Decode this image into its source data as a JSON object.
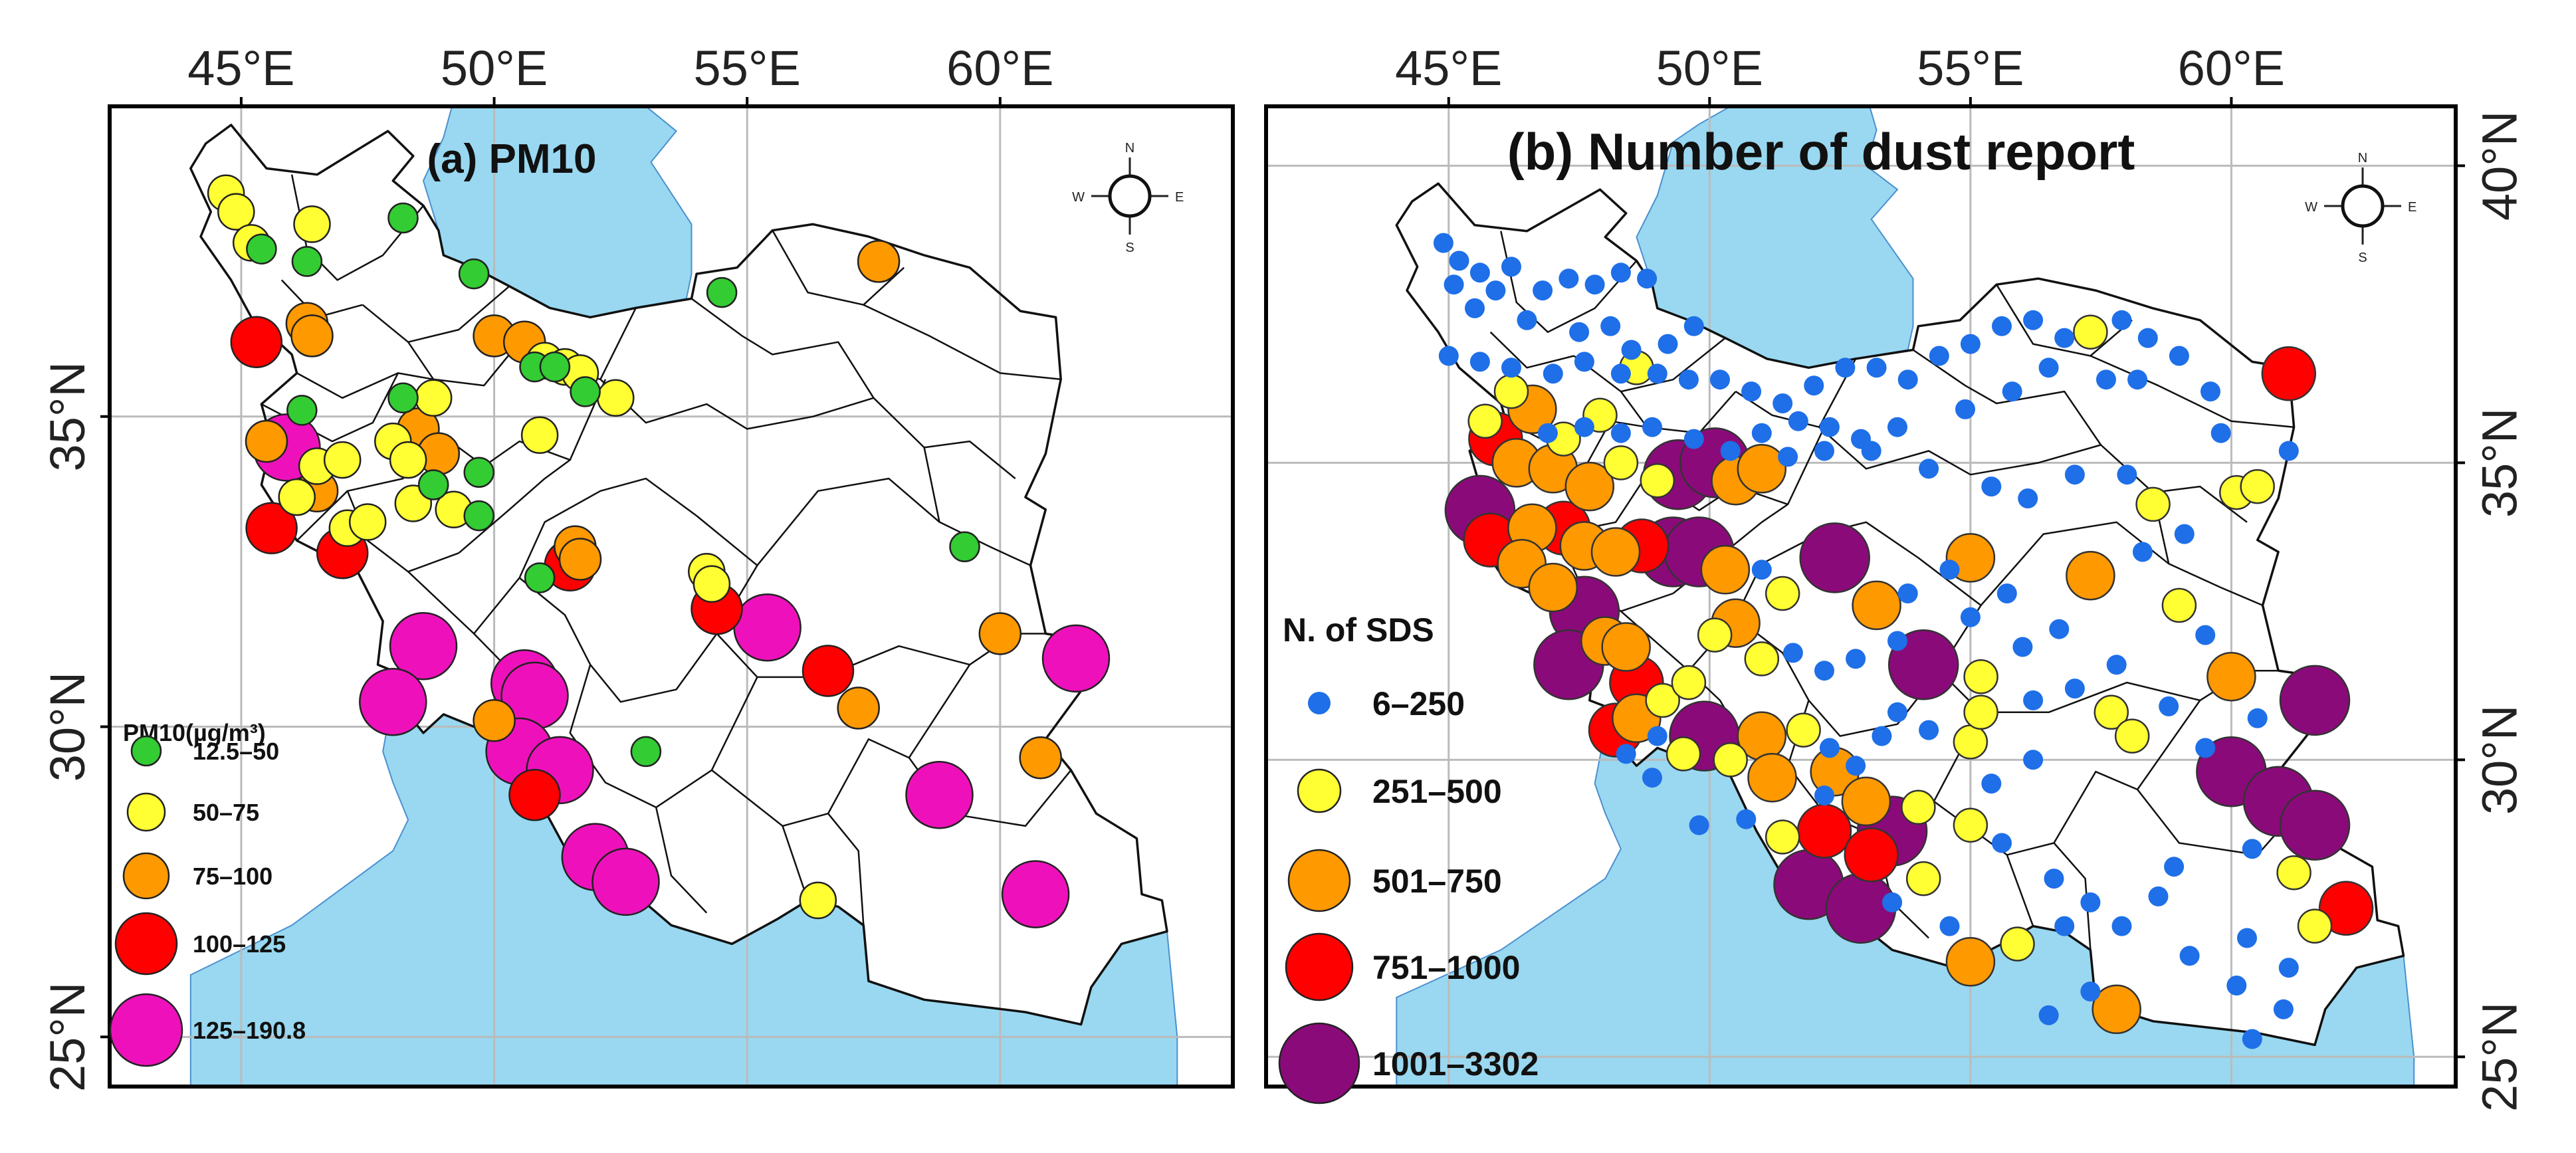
{
  "figure": {
    "panels": [
      {
        "id": "a",
        "title": "(a) PM10",
        "lon_ticks": [
          "45°E",
          "50°E",
          "55°E",
          "60°E"
        ],
        "lat_ticks": [
          "25°N",
          "30°N",
          "35°N"
        ],
        "legend_title": "PM10(µg/m³)",
        "legend": [
          {
            "label": "12.5–50",
            "color": "#33cc33"
          },
          {
            "label": "50–75",
            "color": "#ffff33"
          },
          {
            "label": "75–100",
            "color": "#ff9900"
          },
          {
            "label": "100–125",
            "color": "#ff0000"
          },
          {
            "label": "125–190.8",
            "color": "#ee11bb"
          }
        ],
        "compass": {
          "N": "N",
          "E": "E",
          "S": "S",
          "W": "W"
        }
      },
      {
        "id": "b",
        "title": "(b) Number of dust report",
        "lon_ticks": [
          "45°E",
          "50°E",
          "55°E",
          "60°E"
        ],
        "lat_ticks": [
          "25°N",
          "30°N",
          "35°N",
          "40°N"
        ],
        "legend_title": "N. of SDS",
        "legend": [
          {
            "label": "6–250",
            "color": "#1e6fe8"
          },
          {
            "label": "251–500",
            "color": "#ffff33"
          },
          {
            "label": "501–750",
            "color": "#ff9900"
          },
          {
            "label": "751–1000",
            "color": "#ff0000"
          },
          {
            "label": "1001–3302",
            "color": "#8b0a7a"
          }
        ],
        "compass": {
          "N": "N",
          "E": "E",
          "S": "S",
          "W": "W"
        }
      }
    ]
  },
  "colors": {
    "water": "#99d8f0",
    "border": "#111111",
    "grid": "#bbbbbb",
    "frame": "#000000"
  },
  "stations_a": [
    [
      44.7,
      38.6,
      1
    ],
    [
      44.9,
      38.3,
      1
    ],
    [
      45.2,
      37.8,
      1
    ],
    [
      46.4,
      38.1,
      1
    ],
    [
      45.4,
      37.7,
      0
    ],
    [
      46.3,
      37.5,
      0
    ],
    [
      48.2,
      38.2,
      0
    ],
    [
      49.6,
      37.3,
      0
    ],
    [
      54.5,
      37.0,
      0
    ],
    [
      57.6,
      37.5,
      2
    ],
    [
      45.3,
      36.2,
      3
    ],
    [
      46.3,
      36.5,
      2
    ],
    [
      46.4,
      36.3,
      2
    ],
    [
      50.0,
      36.3,
      2
    ],
    [
      50.6,
      36.2,
      2
    ],
    [
      51.0,
      35.9,
      1
    ],
    [
      51.4,
      35.8,
      1
    ],
    [
      51.7,
      35.7,
      1
    ],
    [
      51.8,
      35.4,
      0
    ],
    [
      50.8,
      35.8,
      0
    ],
    [
      51.2,
      35.8,
      0
    ],
    [
      52.4,
      35.3,
      1
    ],
    [
      46.2,
      35.1,
      0
    ],
    [
      48.2,
      35.3,
      0
    ],
    [
      48.8,
      35.3,
      1
    ],
    [
      50.9,
      34.7,
      1
    ],
    [
      45.5,
      34.6,
      2
    ],
    [
      45.9,
      34.5,
      4
    ],
    [
      46.5,
      34.2,
      1
    ],
    [
      47.0,
      34.3,
      1
    ],
    [
      48.0,
      34.6,
      1
    ],
    [
      48.3,
      34.3,
      1
    ],
    [
      48.5,
      34.8,
      2
    ],
    [
      48.9,
      34.4,
      2
    ],
    [
      49.7,
      34.1,
      0
    ],
    [
      46.5,
      33.8,
      2
    ],
    [
      46.1,
      33.7,
      1
    ],
    [
      47.1,
      33.2,
      1
    ],
    [
      47.5,
      33.3,
      1
    ],
    [
      48.4,
      33.6,
      1
    ],
    [
      49.2,
      33.5,
      1
    ],
    [
      49.7,
      33.4,
      0
    ],
    [
      48.8,
      33.9,
      0
    ],
    [
      45.6,
      33.2,
      3
    ],
    [
      47.0,
      32.8,
      3
    ],
    [
      50.9,
      32.4,
      0
    ],
    [
      51.6,
      32.9,
      2
    ],
    [
      51.7,
      32.7,
      2
    ],
    [
      51.5,
      32.6,
      3
    ],
    [
      54.2,
      32.5,
      1
    ],
    [
      54.3,
      32.3,
      1
    ],
    [
      54.4,
      31.9,
      3
    ],
    [
      55.4,
      31.6,
      4
    ],
    [
      59.3,
      32.9,
      0
    ],
    [
      48.6,
      31.3,
      4
    ],
    [
      48.0,
      30.4,
      4
    ],
    [
      50.6,
      30.7,
      4
    ],
    [
      50.8,
      30.5,
      4
    ],
    [
      50.0,
      30.1,
      2
    ],
    [
      50.5,
      29.6,
      4
    ],
    [
      51.3,
      29.3,
      4
    ],
    [
      50.8,
      28.9,
      3
    ],
    [
      53.0,
      29.6,
      0
    ],
    [
      56.6,
      30.9,
      3
    ],
    [
      57.2,
      30.3,
      2
    ],
    [
      60.0,
      31.5,
      2
    ],
    [
      61.5,
      31.1,
      4
    ],
    [
      58.8,
      28.9,
      4
    ],
    [
      60.8,
      29.5,
      2
    ],
    [
      60.7,
      27.3,
      4
    ],
    [
      52.0,
      27.9,
      4
    ],
    [
      52.6,
      27.5,
      4
    ],
    [
      56.4,
      27.2,
      1
    ]
  ],
  "stations_b": [
    [
      44.9,
      38.7,
      0
    ],
    [
      45.2,
      38.4,
      0
    ],
    [
      45.6,
      38.2,
      0
    ],
    [
      45.1,
      38.0,
      0
    ],
    [
      45.5,
      37.6,
      0
    ],
    [
      45.9,
      37.9,
      0
    ],
    [
      46.2,
      38.3,
      0
    ],
    [
      46.5,
      37.4,
      0
    ],
    [
      46.8,
      37.9,
      0
    ],
    [
      47.3,
      38.1,
      0
    ],
    [
      47.8,
      38.0,
      0
    ],
    [
      48.3,
      38.2,
      0
    ],
    [
      48.8,
      38.1,
      0
    ],
    [
      47.5,
      37.2,
      0
    ],
    [
      48.1,
      37.3,
      0
    ],
    [
      48.5,
      36.9,
      0
    ],
    [
      49.2,
      37.0,
      0
    ],
    [
      49.7,
      37.3,
      0
    ],
    [
      45.0,
      36.8,
      0
    ],
    [
      45.6,
      36.7,
      0
    ],
    [
      46.2,
      36.6,
      0
    ],
    [
      47.0,
      36.5,
      0
    ],
    [
      47.6,
      36.7,
      0
    ],
    [
      48.3,
      36.5,
      0
    ],
    [
      49.0,
      36.5,
      0
    ],
    [
      49.6,
      36.4,
      0
    ],
    [
      50.2,
      36.4,
      0
    ],
    [
      50.8,
      36.2,
      0
    ],
    [
      51.4,
      36.0,
      0
    ],
    [
      52.0,
      36.3,
      0
    ],
    [
      52.6,
      36.6,
      0
    ],
    [
      53.2,
      36.6,
      0
    ],
    [
      53.8,
      36.4,
      0
    ],
    [
      54.4,
      36.8,
      0
    ],
    [
      55.0,
      37.0,
      0
    ],
    [
      55.6,
      37.3,
      0
    ],
    [
      56.2,
      37.4,
      0
    ],
    [
      56.8,
      37.1,
      0
    ],
    [
      57.3,
      37.2,
      1
    ],
    [
      57.9,
      37.4,
      0
    ],
    [
      58.4,
      37.1,
      0
    ],
    [
      59.0,
      36.8,
      0
    ],
    [
      59.6,
      36.2,
      0
    ],
    [
      58.2,
      36.4,
      0
    ],
    [
      57.6,
      36.4,
      0
    ],
    [
      56.5,
      36.6,
      0
    ],
    [
      55.8,
      36.2,
      0
    ],
    [
      54.9,
      35.9,
      0
    ],
    [
      53.6,
      35.6,
      0
    ],
    [
      52.9,
      35.4,
      0
    ],
    [
      52.2,
      35.2,
      0
    ],
    [
      51.7,
      35.7,
      0
    ],
    [
      51.0,
      35.5,
      0
    ],
    [
      50.4,
      35.2,
      0
    ],
    [
      49.7,
      35.4,
      0
    ],
    [
      48.9,
      35.6,
      0
    ],
    [
      48.3,
      35.5,
      0
    ],
    [
      47.6,
      35.6,
      0
    ],
    [
      46.9,
      35.5,
      0
    ],
    [
      46.2,
      36.2,
      1
    ],
    [
      45.7,
      35.7,
      1
    ],
    [
      46.6,
      35.9,
      2
    ],
    [
      47.2,
      35.4,
      1
    ],
    [
      47.9,
      35.8,
      1
    ],
    [
      48.6,
      36.6,
      1
    ],
    [
      45.9,
      35.4,
      3
    ],
    [
      46.3,
      35.0,
      2
    ],
    [
      47.0,
      34.9,
      2
    ],
    [
      47.7,
      34.6,
      2
    ],
    [
      48.3,
      35.0,
      1
    ],
    [
      49.0,
      34.7,
      1
    ],
    [
      49.4,
      34.8,
      4
    ],
    [
      50.1,
      35.0,
      4
    ],
    [
      50.5,
      34.7,
      2
    ],
    [
      51.0,
      34.9,
      2
    ],
    [
      51.5,
      35.1,
      0
    ],
    [
      52.3,
      35.6,
      0
    ],
    [
      53.1,
      35.2,
      0
    ],
    [
      54.2,
      34.9,
      0
    ],
    [
      55.4,
      34.6,
      0
    ],
    [
      56.1,
      34.4,
      0
    ],
    [
      57.0,
      34.8,
      0
    ],
    [
      58.0,
      34.8,
      0
    ],
    [
      58.5,
      34.3,
      1
    ],
    [
      59.1,
      33.8,
      0
    ],
    [
      60.1,
      34.5,
      1
    ],
    [
      60.5,
      34.6,
      1
    ],
    [
      61.1,
      35.2,
      0
    ],
    [
      61.1,
      36.5,
      3
    ],
    [
      59.8,
      35.5,
      0
    ],
    [
      45.6,
      34.2,
      4
    ],
    [
      45.8,
      33.7,
      3
    ],
    [
      46.6,
      33.9,
      2
    ],
    [
      47.2,
      33.9,
      3
    ],
    [
      47.6,
      33.6,
      2
    ],
    [
      46.4,
      33.3,
      2
    ],
    [
      47.0,
      32.9,
      2
    ],
    [
      48.2,
      33.5,
      2
    ],
    [
      48.7,
      33.6,
      3
    ],
    [
      49.3,
      33.5,
      4
    ],
    [
      49.8,
      33.5,
      4
    ],
    [
      50.3,
      33.2,
      2
    ],
    [
      51.0,
      33.2,
      0
    ],
    [
      51.4,
      32.8,
      1
    ],
    [
      52.4,
      33.4,
      4
    ],
    [
      53.2,
      32.6,
      2
    ],
    [
      53.8,
      32.8,
      0
    ],
    [
      54.6,
      33.2,
      0
    ],
    [
      55.0,
      33.4,
      2
    ],
    [
      55.7,
      32.8,
      0
    ],
    [
      57.3,
      33.1,
      2
    ],
    [
      58.3,
      33.5,
      0
    ],
    [
      59.0,
      32.6,
      1
    ],
    [
      59.5,
      32.1,
      0
    ],
    [
      47.6,
      32.5,
      4
    ],
    [
      48.0,
      32.0,
      2
    ],
    [
      48.4,
      31.9,
      2
    ],
    [
      48.6,
      31.3,
      3
    ],
    [
      47.3,
      31.6,
      4
    ],
    [
      48.2,
      30.5,
      3
    ],
    [
      48.6,
      30.7,
      2
    ],
    [
      49.1,
      31.0,
      1
    ],
    [
      49.6,
      31.3,
      1
    ],
    [
      50.1,
      32.1,
      1
    ],
    [
      50.5,
      32.3,
      2
    ],
    [
      51.0,
      31.7,
      1
    ],
    [
      51.6,
      31.8,
      0
    ],
    [
      52.2,
      31.5,
      0
    ],
    [
      52.8,
      31.7,
      0
    ],
    [
      53.6,
      32.0,
      0
    ],
    [
      54.1,
      31.6,
      4
    ],
    [
      55.2,
      31.4,
      1
    ],
    [
      56.2,
      31.0,
      0
    ],
    [
      57.0,
      31.2,
      0
    ],
    [
      57.7,
      30.8,
      1
    ],
    [
      58.1,
      30.4,
      1
    ],
    [
      58.8,
      30.9,
      0
    ],
    [
      59.5,
      30.2,
      0
    ],
    [
      60.0,
      31.4,
      2
    ],
    [
      60.5,
      30.7,
      0
    ],
    [
      61.6,
      31.0,
      4
    ],
    [
      60.0,
      29.8,
      4
    ],
    [
      60.9,
      29.3,
      4
    ],
    [
      61.6,
      28.9,
      4
    ],
    [
      60.4,
      28.5,
      0
    ],
    [
      61.2,
      28.1,
      1
    ],
    [
      61.6,
      27.2,
      1
    ],
    [
      62.2,
      27.5,
      3
    ],
    [
      60.3,
      27.0,
      0
    ],
    [
      61.1,
      26.5,
      0
    ],
    [
      60.1,
      26.2,
      0
    ],
    [
      61.0,
      25.8,
      0
    ],
    [
      58.9,
      28.2,
      0
    ],
    [
      58.6,
      27.7,
      0
    ],
    [
      57.9,
      27.2,
      0
    ],
    [
      57.3,
      27.6,
      0
    ],
    [
      56.8,
      27.2,
      0
    ],
    [
      55.9,
      26.9,
      1
    ],
    [
      56.6,
      28.0,
      0
    ],
    [
      55.6,
      28.6,
      0
    ],
    [
      55.0,
      28.9,
      1
    ],
    [
      55.4,
      29.6,
      0
    ],
    [
      56.2,
      30.0,
      0
    ],
    [
      55.0,
      30.3,
      1
    ],
    [
      54.2,
      30.5,
      0
    ],
    [
      53.6,
      30.8,
      0
    ],
    [
      53.3,
      30.4,
      0
    ],
    [
      52.8,
      29.9,
      0
    ],
    [
      52.3,
      30.2,
      0
    ],
    [
      51.8,
      30.5,
      1
    ],
    [
      51.0,
      30.4,
      2
    ],
    [
      50.4,
      30.0,
      1
    ],
    [
      49.9,
      30.4,
      4
    ],
    [
      49.5,
      30.1,
      1
    ],
    [
      49.0,
      30.4,
      0
    ],
    [
      51.2,
      29.7,
      2
    ],
    [
      52.4,
      29.8,
      2
    ],
    [
      53.0,
      29.3,
      2
    ],
    [
      53.5,
      28.8,
      4
    ],
    [
      52.2,
      28.8,
      3
    ],
    [
      53.1,
      28.4,
      3
    ],
    [
      51.9,
      27.9,
      4
    ],
    [
      52.9,
      27.5,
      4
    ],
    [
      53.5,
      27.6,
      0
    ],
    [
      54.1,
      28.0,
      1
    ],
    [
      54.6,
      27.2,
      0
    ],
    [
      55.0,
      26.6,
      2
    ],
    [
      57.8,
      25.8,
      2
    ],
    [
      56.5,
      25.7,
      0
    ],
    [
      57.3,
      26.1,
      0
    ],
    [
      59.2,
      26.7,
      0
    ],
    [
      60.4,
      25.3,
      0
    ],
    [
      55.2,
      30.8,
      1
    ],
    [
      56.0,
      31.9,
      0
    ],
    [
      56.7,
      32.2,
      0
    ],
    [
      55.0,
      32.4,
      0
    ],
    [
      57.8,
      31.6,
      0
    ],
    [
      49.8,
      28.9,
      0
    ],
    [
      50.7,
      29.0,
      0
    ],
    [
      51.4,
      28.7,
      1
    ],
    [
      52.2,
      29.4,
      0
    ],
    [
      48.9,
      29.7,
      0
    ],
    [
      48.4,
      30.1,
      0
    ],
    [
      54.0,
      29.2,
      1
    ]
  ]
}
